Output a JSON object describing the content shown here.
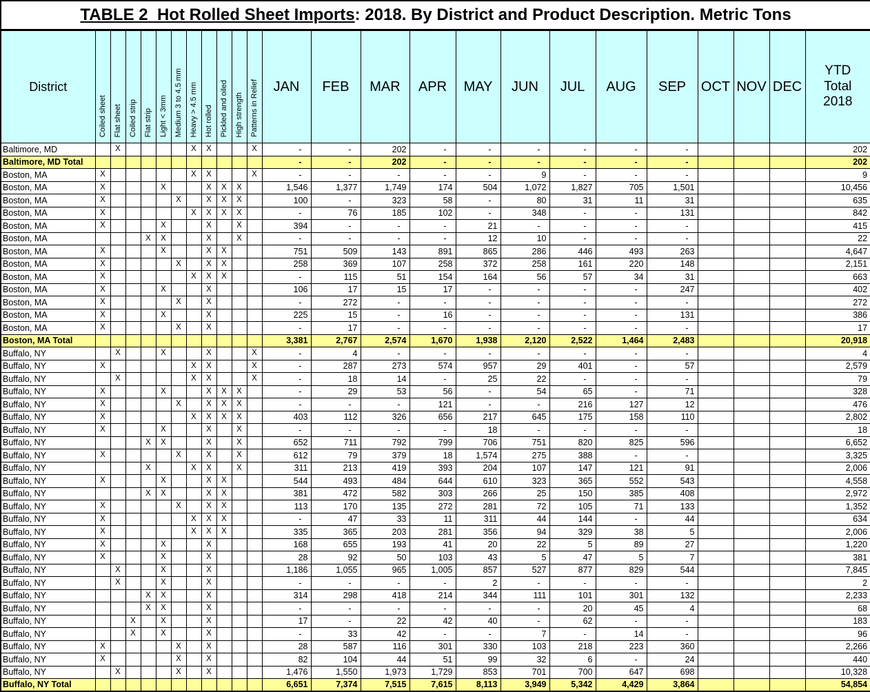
{
  "title": {
    "main": "TABLE 2  Hot Rolled Sheet Imports",
    "rest": ": 2018. By District and Product Description. Metric Tons"
  },
  "colors": {
    "header_bg": "#CCFFFF",
    "total_row_bg": "#FFFF99",
    "border": "#000000"
  },
  "marks": {
    "flag": "X",
    "empty": "-"
  },
  "header": {
    "district": "District",
    "product_columns": [
      "Coiled sheet",
      "Flat sheet",
      "Coiled strip",
      "Flat strip",
      "Light < 3mm",
      "Medium 3 to 4.5 mm",
      "Heavy > 4.5 mm",
      "Hot rolled",
      "Pickled and oiled",
      "High strength",
      "Patterns in Relief"
    ],
    "months": [
      "JAN",
      "FEB",
      "MAR",
      "APR",
      "MAY",
      "JUN",
      "JUL",
      "AUG",
      "SEP",
      "OCT",
      "NOV",
      "DEC"
    ],
    "ytd_lines": [
      "YTD",
      "Total",
      "2018"
    ]
  },
  "rows": [
    {
      "district": "Baltimore, MD",
      "total": false,
      "flags": [
        2,
        7,
        8,
        11
      ],
      "values": [
        "-",
        "-",
        "202",
        "-",
        "-",
        "-",
        "-",
        "-",
        "-"
      ],
      "ytd": "202"
    },
    {
      "district": "Baltimore, MD Total",
      "total": true,
      "flags": [],
      "values": [
        "-",
        "-",
        "202",
        "-",
        "-",
        "-",
        "-",
        "-",
        "-"
      ],
      "ytd": "202"
    },
    {
      "district": "Boston, MA",
      "total": false,
      "flags": [
        1,
        7,
        8,
        11
      ],
      "values": [
        "-",
        "-",
        "-",
        "-",
        "-",
        "9",
        "-",
        "-",
        "-"
      ],
      "ytd": "9"
    },
    {
      "district": "Boston, MA",
      "total": false,
      "flags": [
        1,
        5,
        8,
        9,
        10
      ],
      "values": [
        "1,546",
        "1,377",
        "1,749",
        "174",
        "504",
        "1,072",
        "1,827",
        "705",
        "1,501"
      ],
      "ytd": "10,456"
    },
    {
      "district": "Boston, MA",
      "total": false,
      "flags": [
        1,
        6,
        8,
        9,
        10
      ],
      "values": [
        "100",
        "-",
        "323",
        "58",
        "-",
        "80",
        "31",
        "11",
        "31"
      ],
      "ytd": "635"
    },
    {
      "district": "Boston, MA",
      "total": false,
      "flags": [
        1,
        7,
        8,
        9,
        10
      ],
      "values": [
        "-",
        "76",
        "185",
        "102",
        "-",
        "348",
        "-",
        "-",
        "131"
      ],
      "ytd": "842"
    },
    {
      "district": "Boston, MA",
      "total": false,
      "flags": [
        1,
        5,
        8,
        10
      ],
      "values": [
        "394",
        "-",
        "-",
        "-",
        "21",
        "-",
        "-",
        "-",
        "-"
      ],
      "ytd": "415"
    },
    {
      "district": "Boston, MA",
      "total": false,
      "flags": [
        4,
        5,
        8,
        10
      ],
      "values": [
        "-",
        "-",
        "-",
        "-",
        "12",
        "10",
        "-",
        "-",
        "-"
      ],
      "ytd": "22"
    },
    {
      "district": "Boston, MA",
      "total": false,
      "flags": [
        1,
        5,
        8,
        9
      ],
      "values": [
        "751",
        "509",
        "143",
        "891",
        "865",
        "286",
        "446",
        "493",
        "263"
      ],
      "ytd": "4,647"
    },
    {
      "district": "Boston, MA",
      "total": false,
      "flags": [
        1,
        6,
        8,
        9
      ],
      "values": [
        "258",
        "369",
        "107",
        "258",
        "372",
        "258",
        "161",
        "220",
        "148"
      ],
      "ytd": "2,151"
    },
    {
      "district": "Boston, MA",
      "total": false,
      "flags": [
        1,
        7,
        8,
        9
      ],
      "values": [
        "-",
        "115",
        "51",
        "154",
        "164",
        "56",
        "57",
        "34",
        "31"
      ],
      "ytd": "663"
    },
    {
      "district": "Boston, MA",
      "total": false,
      "flags": [
        1,
        5,
        8
      ],
      "values": [
        "106",
        "17",
        "15",
        "17",
        "-",
        "-",
        "-",
        "-",
        "247"
      ],
      "ytd": "402"
    },
    {
      "district": "Boston, MA",
      "total": false,
      "flags": [
        1,
        6,
        8
      ],
      "values": [
        "-",
        "272",
        "-",
        "-",
        "-",
        "-",
        "-",
        "-",
        "-"
      ],
      "ytd": "272"
    },
    {
      "district": "Boston, MA",
      "total": false,
      "flags": [
        1,
        5,
        8
      ],
      "values": [
        "225",
        "15",
        "-",
        "16",
        "-",
        "-",
        "-",
        "-",
        "131"
      ],
      "ytd": "386"
    },
    {
      "district": "Boston, MA",
      "total": false,
      "flags": [
        1,
        6,
        8
      ],
      "values": [
        "-",
        "17",
        "-",
        "-",
        "-",
        "-",
        "-",
        "-",
        "-"
      ],
      "ytd": "17"
    },
    {
      "district": "Boston, MA Total",
      "total": true,
      "flags": [],
      "values": [
        "3,381",
        "2,767",
        "2,574",
        "1,670",
        "1,938",
        "2,120",
        "2,522",
        "1,464",
        "2,483"
      ],
      "ytd": "20,918"
    },
    {
      "district": "Buffalo, NY",
      "total": false,
      "flags": [
        2,
        5,
        8,
        11
      ],
      "values": [
        "-",
        "4",
        "-",
        "-",
        "-",
        "-",
        "-",
        "-",
        "-"
      ],
      "ytd": "4"
    },
    {
      "district": "Buffalo, NY",
      "total": false,
      "flags": [
        1,
        7,
        8,
        11
      ],
      "values": [
        "-",
        "287",
        "273",
        "574",
        "957",
        "29",
        "401",
        "-",
        "57"
      ],
      "ytd": "2,579"
    },
    {
      "district": "Buffalo, NY",
      "total": false,
      "flags": [
        2,
        7,
        8,
        11
      ],
      "values": [
        "-",
        "18",
        "14",
        "-",
        "25",
        "22",
        "-",
        "-",
        "-"
      ],
      "ytd": "79"
    },
    {
      "district": "Buffalo, NY",
      "total": false,
      "flags": [
        1,
        5,
        8,
        9,
        10
      ],
      "values": [
        "-",
        "29",
        "53",
        "56",
        "-",
        "54",
        "65",
        "-",
        "71"
      ],
      "ytd": "328"
    },
    {
      "district": "Buffalo, NY",
      "total": false,
      "flags": [
        1,
        6,
        8,
        9,
        10
      ],
      "values": [
        "-",
        "-",
        "-",
        "121",
        "-",
        "-",
        "216",
        "127",
        "12"
      ],
      "ytd": "476"
    },
    {
      "district": "Buffalo, NY",
      "total": false,
      "flags": [
        1,
        7,
        8,
        9,
        10
      ],
      "values": [
        "403",
        "112",
        "326",
        "656",
        "217",
        "645",
        "175",
        "158",
        "110"
      ],
      "ytd": "2,802"
    },
    {
      "district": "Buffalo, NY",
      "total": false,
      "flags": [
        1,
        5,
        8,
        10
      ],
      "values": [
        "-",
        "-",
        "-",
        "-",
        "18",
        "-",
        "-",
        "-",
        "-"
      ],
      "ytd": "18"
    },
    {
      "district": "Buffalo, NY",
      "total": false,
      "flags": [
        4,
        5,
        8,
        10
      ],
      "values": [
        "652",
        "711",
        "792",
        "799",
        "706",
        "751",
        "820",
        "825",
        "596"
      ],
      "ytd": "6,652"
    },
    {
      "district": "Buffalo, NY",
      "total": false,
      "flags": [
        1,
        6,
        8,
        10
      ],
      "values": [
        "612",
        "79",
        "379",
        "18",
        "1,574",
        "275",
        "388",
        "-",
        "-"
      ],
      "ytd": "3,325"
    },
    {
      "district": "Buffalo, NY",
      "total": false,
      "flags": [
        4,
        7,
        8,
        10
      ],
      "values": [
        "311",
        "213",
        "419",
        "393",
        "204",
        "107",
        "147",
        "121",
        "91"
      ],
      "ytd": "2,006"
    },
    {
      "district": "Buffalo, NY",
      "total": false,
      "flags": [
        1,
        5,
        8,
        9
      ],
      "values": [
        "544",
        "493",
        "484",
        "644",
        "610",
        "323",
        "365",
        "552",
        "543"
      ],
      "ytd": "4,558"
    },
    {
      "district": "Buffalo, NY",
      "total": false,
      "flags": [
        4,
        5,
        8,
        9
      ],
      "values": [
        "381",
        "472",
        "582",
        "303",
        "266",
        "25",
        "150",
        "385",
        "408"
      ],
      "ytd": "2,972"
    },
    {
      "district": "Buffalo, NY",
      "total": false,
      "flags": [
        1,
        6,
        8,
        9
      ],
      "values": [
        "113",
        "170",
        "135",
        "272",
        "281",
        "72",
        "105",
        "71",
        "133"
      ],
      "ytd": "1,352"
    },
    {
      "district": "Buffalo, NY",
      "total": false,
      "flags": [
        1,
        7,
        8,
        9
      ],
      "values": [
        "-",
        "47",
        "33",
        "11",
        "311",
        "44",
        "144",
        "-",
        "44"
      ],
      "ytd": "634"
    },
    {
      "district": "Buffalo, NY",
      "total": false,
      "flags": [
        1,
        7,
        8,
        9
      ],
      "values": [
        "335",
        "365",
        "203",
        "281",
        "356",
        "94",
        "329",
        "38",
        "5"
      ],
      "ytd": "2,006"
    },
    {
      "district": "Buffalo, NY",
      "total": false,
      "flags": [
        1,
        5,
        8
      ],
      "values": [
        "168",
        "655",
        "193",
        "41",
        "20",
        "22",
        "5",
        "89",
        "27"
      ],
      "ytd": "1,220"
    },
    {
      "district": "Buffalo, NY",
      "total": false,
      "flags": [
        1,
        5,
        8
      ],
      "values": [
        "28",
        "92",
        "50",
        "103",
        "43",
        "5",
        "47",
        "5",
        "7"
      ],
      "ytd": "381"
    },
    {
      "district": "Buffalo, NY",
      "total": false,
      "flags": [
        2,
        5,
        8
      ],
      "values": [
        "1,186",
        "1,055",
        "965",
        "1,005",
        "857",
        "527",
        "877",
        "829",
        "544"
      ],
      "ytd": "7,845"
    },
    {
      "district": "Buffalo, NY",
      "total": false,
      "flags": [
        2,
        5,
        8
      ],
      "values": [
        "-",
        "-",
        "-",
        "-",
        "2",
        "-",
        "-",
        "-",
        "-"
      ],
      "ytd": "2"
    },
    {
      "district": "Buffalo, NY",
      "total": false,
      "flags": [
        4,
        5,
        8
      ],
      "values": [
        "314",
        "298",
        "418",
        "214",
        "344",
        "111",
        "101",
        "301",
        "132"
      ],
      "ytd": "2,233"
    },
    {
      "district": "Buffalo, NY",
      "total": false,
      "flags": [
        4,
        5,
        8
      ],
      "values": [
        "-",
        "-",
        "-",
        "-",
        "-",
        "-",
        "20",
        "45",
        "4"
      ],
      "ytd": "68"
    },
    {
      "district": "Buffalo, NY",
      "total": false,
      "flags": [
        3,
        5,
        8
      ],
      "values": [
        "17",
        "-",
        "22",
        "42",
        "40",
        "-",
        "62",
        "-",
        "-"
      ],
      "ytd": "183"
    },
    {
      "district": "Buffalo, NY",
      "total": false,
      "flags": [
        3,
        5,
        8
      ],
      "values": [
        "-",
        "33",
        "42",
        "-",
        "-",
        "7",
        "-",
        "14",
        "-"
      ],
      "ytd": "96"
    },
    {
      "district": "Buffalo, NY",
      "total": false,
      "flags": [
        1,
        6,
        8
      ],
      "values": [
        "28",
        "587",
        "116",
        "301",
        "330",
        "103",
        "218",
        "223",
        "360"
      ],
      "ytd": "2,266"
    },
    {
      "district": "Buffalo, NY",
      "total": false,
      "flags": [
        1,
        6,
        8
      ],
      "values": [
        "82",
        "104",
        "44",
        "51",
        "99",
        "32",
        "6",
        "-",
        "24"
      ],
      "ytd": "440"
    },
    {
      "district": "Buffalo, NY",
      "total": false,
      "flags": [
        2,
        6,
        8
      ],
      "values": [
        "1,476",
        "1,550",
        "1,973",
        "1,729",
        "853",
        "701",
        "700",
        "647",
        "698"
      ],
      "ytd": "10,328"
    },
    {
      "district": "Buffalo, NY Total",
      "total": true,
      "flags": [],
      "values": [
        "6,651",
        "7,374",
        "7,515",
        "7,615",
        "8,113",
        "3,949",
        "5,342",
        "4,429",
        "3,864"
      ],
      "ytd": "54,854"
    }
  ]
}
